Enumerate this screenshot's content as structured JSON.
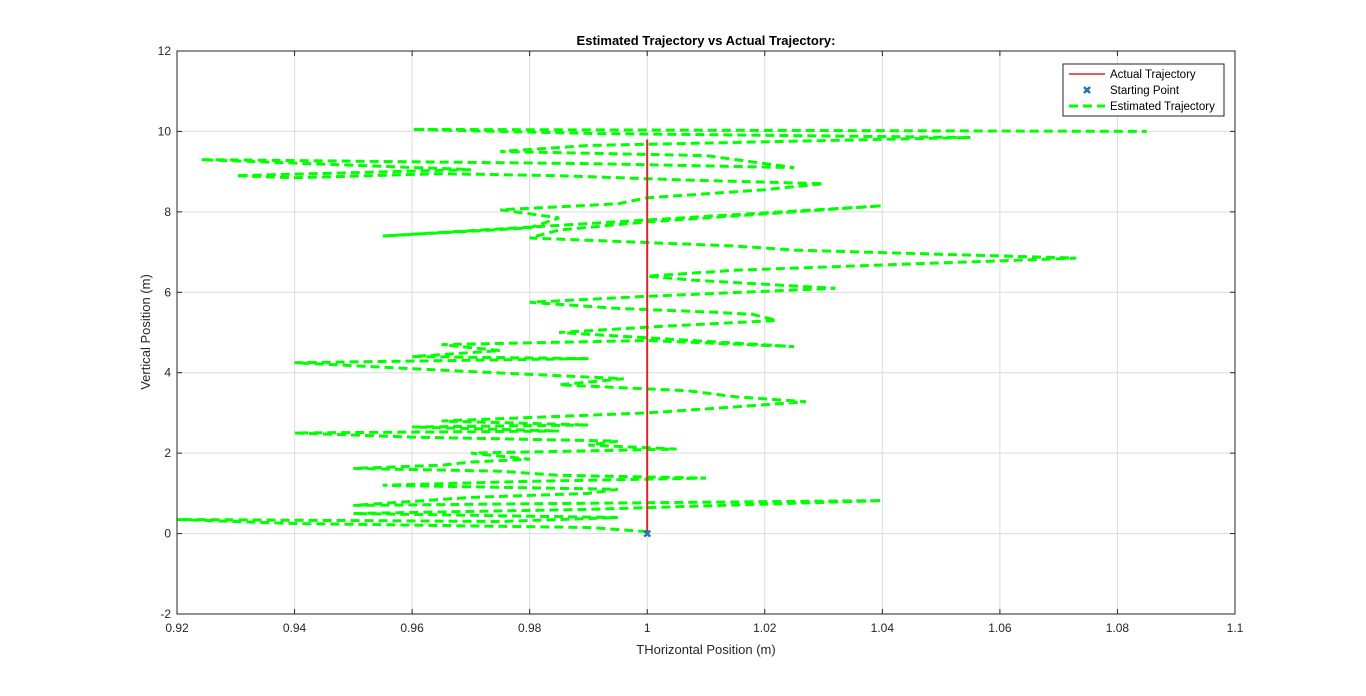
{
  "chart_data": {
    "type": "line",
    "title": "Estimated Trajectory vs Actual Trajectory:",
    "xlabel": "THorizontal Position (m)",
    "ylabel": "Vertical Position (m)",
    "xlim": [
      0.92,
      1.1
    ],
    "ylim": [
      -2,
      12
    ],
    "x_ticks": [
      "0.92",
      "0.94",
      "0.96",
      "0.98",
      "1",
      "1.02",
      "1.04",
      "1.06",
      "1.08",
      "1.1"
    ],
    "y_ticks": [
      "-2",
      "0",
      "2",
      "4",
      "6",
      "8",
      "10",
      "12"
    ],
    "grid": true,
    "legend_position": "top-right",
    "colors": {
      "actual": "#d62728",
      "start": "#1f77b4",
      "estimated": "#00ff00",
      "grid": "#dcdcdc",
      "axis": "#262626"
    },
    "series": [
      {
        "name": "Actual Trajectory",
        "style": "solid-line",
        "x": [
          1.0,
          1.0
        ],
        "y": [
          0,
          9.8
        ]
      },
      {
        "name": "Starting Point",
        "style": "marker-x",
        "x": [
          1.0
        ],
        "y": [
          0
        ]
      },
      {
        "name": "Estimated Trajectory",
        "style": "dashed-line",
        "x": [
          1.0,
          0.99,
          0.94,
          0.92,
          0.975,
          0.995,
          0.95,
          0.99,
          1.04,
          0.95,
          0.97,
          0.99,
          0.995,
          0.955,
          0.98,
          1.01,
          0.985,
          0.975,
          0.95,
          0.965,
          0.97,
          0.98,
          0.97,
          1.005,
          0.99,
          0.995,
          0.96,
          0.94,
          0.985,
          0.96,
          0.99,
          0.965,
          1.0,
          1.015,
          1.027,
          1.015,
          1.007,
          0.985,
          0.996,
          0.974,
          0.96,
          0.94,
          0.99,
          0.96,
          0.975,
          0.965,
          1.0,
          1.025,
          0.985,
          1.002,
          1.022,
          1.018,
          1.012,
          0.995,
          0.98,
          1.0,
          1.032,
          1.008,
          1.0,
          1.015,
          1.073,
          1.025,
          1.015,
          0.98,
          0.985,
          1.0,
          1.04,
          0.955,
          0.98,
          0.985,
          0.975,
          0.995,
          1.0,
          1.01,
          1.02,
          1.03,
          1.005,
          0.985,
          0.965,
          0.94,
          0.93,
          0.97,
          0.924,
          0.99,
          1.025,
          1.01,
          0.975,
          0.99,
          1.055,
          0.99,
          0.96,
          1.085
        ],
        "y": [
          0.05,
          0.15,
          0.25,
          0.35,
          0.3,
          0.4,
          0.5,
          0.6,
          0.82,
          0.7,
          0.9,
          1.0,
          1.1,
          1.2,
          1.3,
          1.38,
          1.45,
          1.55,
          1.62,
          1.7,
          1.78,
          1.85,
          2.0,
          2.1,
          2.2,
          2.3,
          2.4,
          2.5,
          2.55,
          2.65,
          2.7,
          2.8,
          3.0,
          3.15,
          3.28,
          3.4,
          3.55,
          3.7,
          3.85,
          4.0,
          4.1,
          4.25,
          4.35,
          4.4,
          4.55,
          4.7,
          4.8,
          4.65,
          5.0,
          5.15,
          5.3,
          5.45,
          5.5,
          5.6,
          5.75,
          5.9,
          6.1,
          6.3,
          6.4,
          6.55,
          6.85,
          7.05,
          7.15,
          7.35,
          7.55,
          7.75,
          8.15,
          7.4,
          7.6,
          7.85,
          8.05,
          8.2,
          8.35,
          8.45,
          8.55,
          8.7,
          8.8,
          8.9,
          8.95,
          8.85,
          8.9,
          9.05,
          9.3,
          9.2,
          9.1,
          9.4,
          9.5,
          9.65,
          9.85,
          9.95,
          10.05,
          10.0
        ]
      }
    ]
  }
}
